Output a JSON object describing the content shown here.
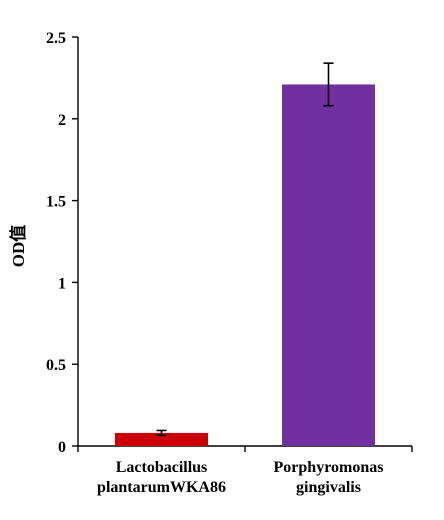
{
  "chart_data": {
    "type": "bar",
    "title": "",
    "ylabel": "OD值",
    "xlabel": "",
    "ylim": [
      0,
      2.5
    ],
    "yticks": [
      0,
      0.5,
      1,
      1.5,
      2,
      2.5
    ],
    "ytick_labels": [
      "0",
      "0.5",
      "1",
      "1.5",
      "2",
      "2.5"
    ],
    "grid": false,
    "legend": "none",
    "categories": [
      [
        "Lactobacillus",
        "plantarumWKA86"
      ],
      [
        "Porphyromonas",
        "gingivalis"
      ]
    ],
    "values": [
      0.08,
      2.21
    ],
    "errors": [
      0.015,
      0.13
    ],
    "colors": [
      "#cc0000",
      "#7030a0"
    ]
  }
}
